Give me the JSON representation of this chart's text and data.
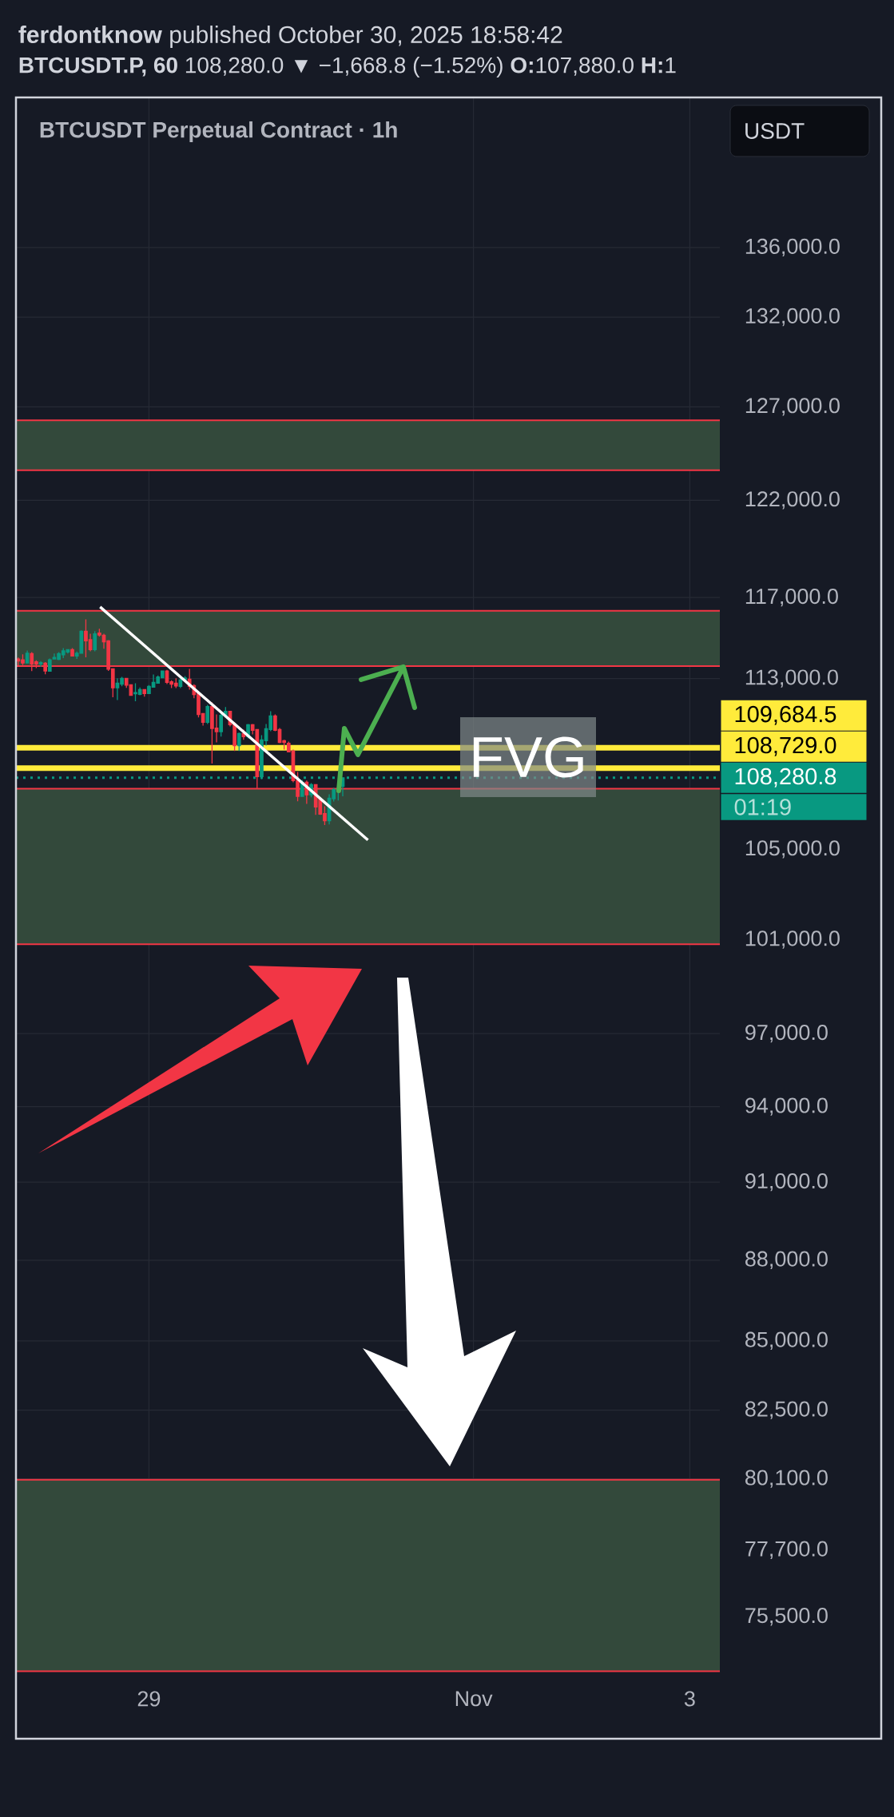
{
  "chart_data": {
    "type": "candlestick",
    "title": "**ferdontknow** published October 30, 2025 18:58:42",
    "subtitle": "**BTCUSDT.P, 60** 108,280.0 ▼ −1,668.8 (−1.52%) **O:**107,880.0 **H:**1",
    "annotations": [
      "BTCUSDT Perpetual Contract · 1h",
      "USDT",
      "FVG",
      "01:19"
    ],
    "series": [
      {
        "x": [
          "2025-10-27T19:00",
          "2025-10-27T20:00",
          "2025-10-27T21:00",
          "2025-10-27T22:00",
          "2025-10-27T23:00",
          "2025-10-28T00:00",
          "2025-10-28T01:00",
          "2025-10-28T02:00",
          "2025-10-28T03:00",
          "2025-10-28T04:00",
          "2025-10-28T05:00",
          "2025-10-28T06:00",
          "2025-10-28T07:00",
          "2025-10-28T08:00",
          "2025-10-28T09:00",
          "2025-10-28T10:00",
          "2025-10-28T11:00",
          "2025-10-28T12:00",
          "2025-10-28T13:00",
          "2025-10-28T14:00",
          "2025-10-28T15:00",
          "2025-10-28T16:00",
          "2025-10-28T17:00",
          "2025-10-28T18:00",
          "2025-10-28T19:00",
          "2025-10-28T20:00",
          "2025-10-28T21:00",
          "2025-10-28T22:00",
          "2025-10-28T23:00",
          "2025-10-29T00:00",
          "2025-10-29T01:00",
          "2025-10-29T02:00",
          "2025-10-29T03:00",
          "2025-10-29T04:00",
          "2025-10-29T05:00",
          "2025-10-29T06:00",
          "2025-10-29T07:00",
          "2025-10-29T08:00",
          "2025-10-29T09:00",
          "2025-10-29T10:00",
          "2025-10-29T11:00",
          "2025-10-29T12:00",
          "2025-10-29T13:00",
          "2025-10-29T14:00",
          "2025-10-29T15:00",
          "2025-10-29T16:00",
          "2025-10-29T17:00",
          "2025-10-29T18:00",
          "2025-10-29T19:00",
          "2025-10-29T20:00",
          "2025-10-29T21:00",
          "2025-10-29T22:00",
          "2025-10-29T23:00",
          "2025-10-30T00:00",
          "2025-10-30T01:00",
          "2025-10-30T02:00",
          "2025-10-30T03:00",
          "2025-10-30T04:00",
          "2025-10-30T05:00",
          "2025-10-30T06:00",
          "2025-10-30T07:00",
          "2025-10-30T08:00",
          "2025-10-30T09:00",
          "2025-10-30T10:00",
          "2025-10-30T11:00",
          "2025-10-30T12:00",
          "2025-10-30T13:00",
          "2025-10-30T14:00",
          "2025-10-30T15:00",
          "2025-10-30T16:00",
          "2025-10-30T17:00",
          "2025-10-30T18:00",
          "2025-10-30T19:00"
        ],
        "ohlc": [
          [
            113950,
            114020,
            113630,
            113860
          ],
          [
            113910,
            114180,
            113650,
            113760
          ],
          [
            113760,
            114370,
            113760,
            114230
          ],
          [
            114220,
            114290,
            113360,
            113710
          ],
          [
            113810,
            113890,
            113510,
            113710
          ],
          [
            113710,
            113850,
            113560,
            113770
          ],
          [
            113750,
            113800,
            113210,
            113370
          ],
          [
            113360,
            113980,
            113360,
            113910
          ],
          [
            113950,
            114220,
            113950,
            114030
          ],
          [
            113930,
            114290,
            113900,
            114220
          ],
          [
            114160,
            114490,
            113990,
            114350
          ],
          [
            114290,
            114410,
            114220,
            114410
          ],
          [
            114410,
            114490,
            114100,
            114100
          ],
          [
            114100,
            114320,
            113950,
            114230
          ],
          [
            114230,
            115360,
            114230,
            115320
          ],
          [
            115320,
            115910,
            114030,
            114840
          ],
          [
            114900,
            115200,
            114330,
            114410
          ],
          [
            114410,
            115320,
            114330,
            115190
          ],
          [
            115230,
            115440,
            115060,
            115130
          ],
          [
            115120,
            115200,
            114450,
            114800
          ],
          [
            114840,
            114880,
            113370,
            113450
          ],
          [
            113470,
            113500,
            112090,
            112550
          ],
          [
            112550,
            113010,
            111960,
            112770
          ],
          [
            112730,
            113080,
            112620,
            113010
          ],
          [
            113010,
            113010,
            112550,
            112680
          ],
          [
            112690,
            112690,
            112190,
            112190
          ],
          [
            112260,
            112770,
            111900,
            112320
          ],
          [
            112230,
            112570,
            112190,
            112460
          ],
          [
            112460,
            112460,
            112120,
            112270
          ],
          [
            112270,
            112680,
            112270,
            112620
          ],
          [
            112580,
            113200,
            112580,
            112810
          ],
          [
            112770,
            113150,
            112770,
            113070
          ],
          [
            113040,
            113390,
            113040,
            113360
          ],
          [
            113360,
            113420,
            112730,
            112810
          ],
          [
            112840,
            112910,
            112540,
            112730
          ],
          [
            112770,
            113010,
            112540,
            112640
          ],
          [
            112620,
            113070,
            112540,
            112930
          ],
          [
            112940,
            113120,
            112850,
            113030
          ],
          [
            112970,
            113470,
            112460,
            112620
          ],
          [
            112660,
            112720,
            112050,
            112220
          ],
          [
            112270,
            112350,
            111130,
            111270
          ],
          [
            111310,
            111310,
            110740,
            110890
          ],
          [
            110890,
            111730,
            110810,
            111650
          ],
          [
            111650,
            111850,
            108940,
            110600
          ],
          [
            110620,
            111270,
            109940,
            110450
          ],
          [
            110450,
            111390,
            110210,
            111230
          ],
          [
            111200,
            111620,
            111200,
            111420
          ],
          [
            111420,
            111420,
            110700,
            110780
          ],
          [
            110810,
            110890,
            109530,
            109790
          ],
          [
            109790,
            110400,
            109530,
            110360
          ],
          [
            110360,
            110550,
            110060,
            110210
          ],
          [
            110210,
            110810,
            110130,
            110780
          ],
          [
            110780,
            110810,
            110320,
            110510
          ],
          [
            110550,
            110550,
            107750,
            108330
          ],
          [
            108330,
            110280,
            108220,
            110060
          ],
          [
            110020,
            110810,
            109790,
            110590
          ],
          [
            110550,
            111420,
            110470,
            111200
          ],
          [
            111200,
            111270,
            110470,
            110510
          ],
          [
            110550,
            110620,
            109900,
            109940
          ],
          [
            110020,
            110060,
            109600,
            109940
          ],
          [
            109900,
            109980,
            109490,
            109490
          ],
          [
            109530,
            109600,
            108070,
            108150
          ],
          [
            108150,
            108550,
            107190,
            107420
          ],
          [
            107420,
            108180,
            107420,
            108070
          ],
          [
            108070,
            108150,
            107070,
            107490
          ],
          [
            107490,
            108030,
            107380,
            107960
          ],
          [
            107960,
            107960,
            106570,
            106930
          ],
          [
            107290,
            107370,
            106570,
            106600
          ],
          [
            106630,
            106960,
            106100,
            106300
          ],
          [
            106300,
            107510,
            106130,
            107330
          ],
          [
            107310,
            107810,
            107180,
            107740
          ],
          [
            107700,
            107770,
            107230,
            107770
          ],
          [
            107880,
            108300,
            107420,
            108280
          ]
        ],
        "colors": [
          "#f23645",
          "#f23645",
          "#089981",
          "#f23645",
          "#f23645",
          "#089981",
          "#f23645",
          "#089981",
          "#089981",
          "#089981",
          "#089981",
          "#089981",
          "#f23645",
          "#089981",
          "#089981",
          "#f23645",
          "#f23645",
          "#089981",
          "#f23645",
          "#f23645",
          "#f23645",
          "#f23645",
          "#089981",
          "#089981",
          "#f23645",
          "#f23645",
          "#089981",
          "#089981",
          "#f23645",
          "#089981",
          "#089981",
          "#089981",
          "#089981",
          "#f23645",
          "#f23645",
          "#f23645",
          "#089981",
          "#089981",
          "#f23645",
          "#f23645",
          "#f23645",
          "#f23645",
          "#089981",
          "#f23645",
          "#f23645",
          "#089981",
          "#089981",
          "#f23645",
          "#f23645",
          "#089981",
          "#f23645",
          "#089981",
          "#f23645",
          "#f23645",
          "#089981",
          "#089981",
          "#089981",
          "#f23645",
          "#f23645",
          "#f23645",
          "#f23645",
          "#f23645",
          "#f23645",
          "#089981",
          "#f23645",
          "#089981",
          "#f23645",
          "#f23645",
          "#f23645",
          "#089981",
          "#089981",
          "#089981",
          "#089981"
        ]
      },
      {
        "type": "line",
        "color": "#ffffff",
        "x": [
          "2025-10-28T13:10",
          "2025-10-31T00:35"
        ],
        "values": [
          116530,
          105420
        ]
      }
    ],
    "xlim": [
      "2025-10-27T18:30",
      "2025-11-03T06:40"
    ],
    "xticks": [
      {
        "value": "2025-10-29",
        "label": "29"
      },
      {
        "value": "2025-11-01",
        "label": "Nov"
      },
      {
        "value": "2025-11-03",
        "label": "3"
      }
    ],
    "ylim": [
      73750,
      145100
    ],
    "yticks": [
      {
        "value": 136000,
        "label": "136,000.0"
      },
      {
        "value": 132000,
        "label": "132,000.0"
      },
      {
        "value": 127000,
        "label": "127,000.0"
      },
      {
        "value": 122000,
        "label": "122,000.0"
      },
      {
        "value": 117000,
        "label": "117,000.0"
      },
      {
        "value": 113000,
        "label": "113,000.0"
      },
      {
        "value": 105000,
        "label": "105,000.0"
      },
      {
        "value": 101000,
        "label": "101,000.0"
      },
      {
        "value": 97000,
        "label": "97,000.0"
      },
      {
        "value": 94000,
        "label": "94,000.0"
      },
      {
        "value": 91000,
        "label": "91,000.0"
      },
      {
        "value": 88000,
        "label": "88,000.0"
      },
      {
        "value": 85000,
        "label": "85,000.0"
      },
      {
        "value": 82500,
        "label": "82,500.0"
      },
      {
        "value": 80100,
        "label": "80,100.0"
      },
      {
        "value": 77700,
        "label": "77,700.0"
      },
      {
        "value": 75500,
        "label": "75,500.0"
      }
    ],
    "log": "y",
    "grid": true,
    "bands": [
      {
        "axis": "y",
        "from": 123590,
        "to": 126270,
        "color": "#33493b"
      },
      {
        "axis": "y",
        "from": 113610,
        "to": 116340,
        "color": "#33493b"
      },
      {
        "axis": "y",
        "from": 100800,
        "to": 107770,
        "color": "#33493b"
      },
      {
        "axis": "y",
        "from": 73750,
        "to": 80070,
        "color": "#33493b"
      }
    ],
    "ref_lines": [
      {
        "axis": "y",
        "value": 109684.5,
        "label": "109,684.5",
        "color": "#ffeb3b",
        "line_style": "solid"
      },
      {
        "axis": "y",
        "value": 108729.0,
        "label": "108,729.0",
        "color": "#ffeb3b",
        "line_style": "solid"
      },
      {
        "axis": "y",
        "value": 108280.8,
        "label": "108,280.8",
        "color": "#089981",
        "line_style": "dotted"
      }
    ]
  }
}
